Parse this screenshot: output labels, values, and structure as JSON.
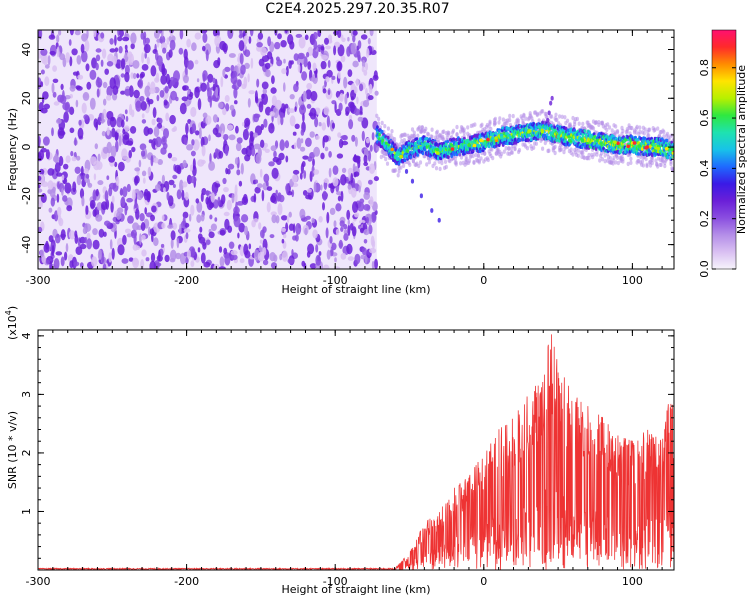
{
  "title": "C2E4.2025.297.20.35.R07",
  "colors": {
    "snr_line": "#ee3333",
    "noise_purple": "#7b2be0",
    "colormap": [
      "#f7f4fb",
      "#d9c0f2",
      "#b48ee8",
      "#8a4ee0",
      "#6a1fd8",
      "#3a1ae6",
      "#1e6bff",
      "#18c3e8",
      "#1ee2b0",
      "#2fe840",
      "#b7f000",
      "#ffe400",
      "#ff8c00",
      "#ff2a2a",
      "#ff1070"
    ]
  },
  "chart_data": [
    {
      "type": "heatmap",
      "xlabel": "Height of straight line (km)",
      "ylabel": "Frequency (Hz)",
      "xlim": [
        -300,
        128
      ],
      "ylim": [
        -50,
        48
      ],
      "x_ticks": [
        "-300",
        "-200",
        "-100",
        "0",
        "100"
      ],
      "y_ticks": [
        "-40",
        "-20",
        "0",
        "20",
        "40"
      ],
      "colorbar": {
        "label": "Normalized spectral amplitude",
        "range": [
          0,
          0.95
        ],
        "ticks": [
          "0.0",
          "0.2",
          "0.4",
          "0.6",
          "0.8"
        ]
      },
      "noise_region_x": [
        -300,
        -72
      ],
      "signal_ridge": [
        {
          "x": -72,
          "freq": 5
        },
        {
          "x": -65,
          "freq": 1
        },
        {
          "x": -58,
          "freq": -4
        },
        {
          "x": -50,
          "freq": -1
        },
        {
          "x": -40,
          "freq": 1
        },
        {
          "x": -30,
          "freq": -2
        },
        {
          "x": -20,
          "freq": 0
        },
        {
          "x": -10,
          "freq": 1
        },
        {
          "x": 0,
          "freq": 2
        },
        {
          "x": 10,
          "freq": 4
        },
        {
          "x": 20,
          "freq": 5
        },
        {
          "x": 30,
          "freq": 6
        },
        {
          "x": 40,
          "freq": 7
        },
        {
          "x": 50,
          "freq": 5
        },
        {
          "x": 60,
          "freq": 4
        },
        {
          "x": 70,
          "freq": 3
        },
        {
          "x": 80,
          "freq": 2
        },
        {
          "x": 90,
          "freq": 1
        },
        {
          "x": 100,
          "freq": 1
        },
        {
          "x": 110,
          "freq": 0
        },
        {
          "x": 120,
          "freq": 0
        },
        {
          "x": 128,
          "freq": -2
        }
      ],
      "grid": false
    },
    {
      "type": "line",
      "xlabel": "Height of straight line (km)",
      "ylabel": "SNR (10 * v/v)",
      "y_scale_label": "(x10",
      "y_scale_exp": "4",
      "xlim": [
        -300,
        128
      ],
      "ylim": [
        0,
        4.1
      ],
      "x_ticks": [
        "-300",
        "-200",
        "-100",
        "0",
        "100"
      ],
      "y_ticks": [
        "1",
        "2",
        "3",
        "4"
      ],
      "envelope": [
        {
          "x": -300,
          "y": 0.02
        },
        {
          "x": -60,
          "y": 0.02
        },
        {
          "x": -50,
          "y": 0.3
        },
        {
          "x": -40,
          "y": 0.8
        },
        {
          "x": -30,
          "y": 1.0
        },
        {
          "x": -20,
          "y": 1.4
        },
        {
          "x": -10,
          "y": 1.6
        },
        {
          "x": 0,
          "y": 2.0
        },
        {
          "x": 10,
          "y": 2.4
        },
        {
          "x": 20,
          "y": 2.6
        },
        {
          "x": 30,
          "y": 3.0
        },
        {
          "x": 40,
          "y": 3.3
        },
        {
          "x": 45,
          "y": 4.1
        },
        {
          "x": 50,
          "y": 3.5
        },
        {
          "x": 60,
          "y": 3.0
        },
        {
          "x": 70,
          "y": 2.8
        },
        {
          "x": 80,
          "y": 2.6
        },
        {
          "x": 90,
          "y": 2.3
        },
        {
          "x": 100,
          "y": 2.2
        },
        {
          "x": 110,
          "y": 2.4
        },
        {
          "x": 120,
          "y": 2.2
        },
        {
          "x": 125,
          "y": 3.0
        },
        {
          "x": 128,
          "y": 2.8
        }
      ],
      "grid": false
    }
  ]
}
